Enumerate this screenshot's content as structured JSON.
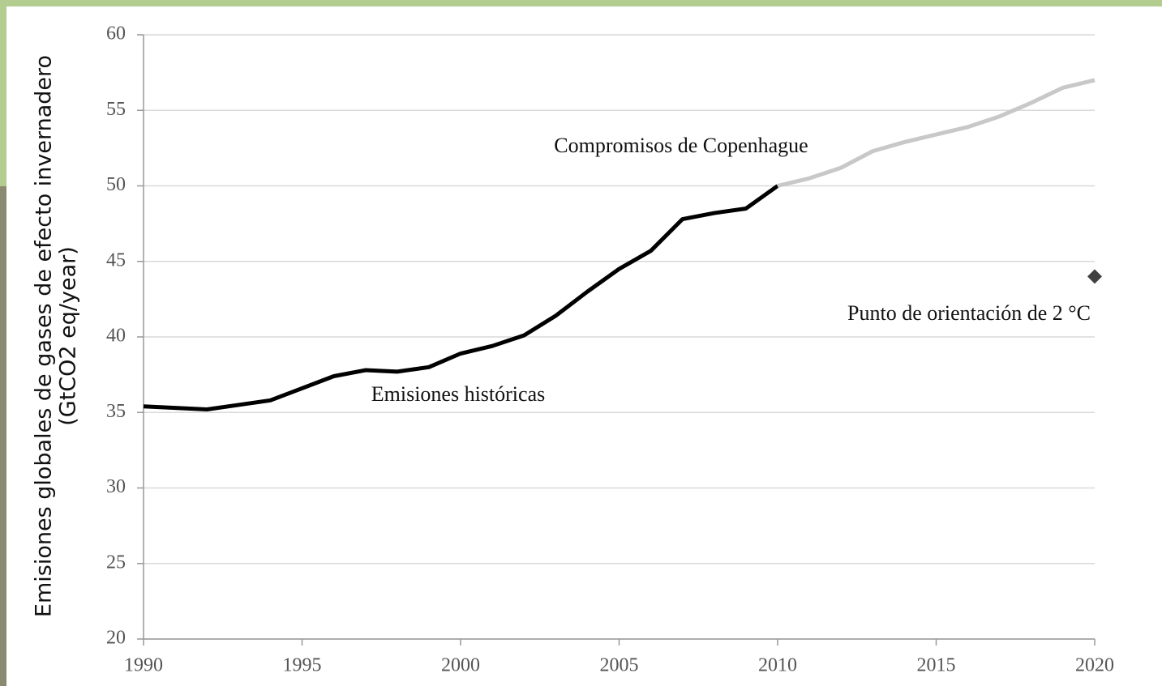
{
  "chart_data": {
    "type": "line",
    "y_label": [
      "Emisiones globales de gases de efecto invernadero",
      "(GtCO2 eq/year)"
    ],
    "x": [
      1990,
      1991,
      1992,
      1993,
      1994,
      1995,
      1996,
      1997,
      1998,
      1999,
      2000,
      2001,
      2002,
      2003,
      2004,
      2005,
      2006,
      2007,
      2008,
      2009,
      2010,
      2011,
      2012,
      2013,
      2014,
      2015,
      2016,
      2017,
      2018,
      2019,
      2020
    ],
    "series": [
      {
        "name": "Emisiones históricas",
        "color": "#000000",
        "marker": "line",
        "values": [
          35.4,
          35.3,
          35.2,
          35.5,
          35.8,
          36.6,
          37.4,
          37.8,
          37.7,
          38.0,
          38.9,
          39.4,
          40.1,
          41.4,
          43.0,
          44.5,
          45.7,
          47.8,
          48.2,
          48.5,
          50.0,
          null,
          null,
          null,
          null,
          null,
          null,
          null,
          null,
          null,
          null
        ]
      },
      {
        "name": "Compromisos de Copenhague",
        "color": "#c8c8c8",
        "marker": "line",
        "values": [
          null,
          null,
          null,
          null,
          null,
          null,
          null,
          null,
          null,
          null,
          null,
          null,
          null,
          null,
          null,
          null,
          null,
          null,
          null,
          null,
          50.0,
          50.5,
          51.2,
          52.3,
          52.9,
          53.4,
          53.9,
          54.6,
          55.5,
          56.5,
          57.0
        ]
      },
      {
        "name": "Punto de orientación de 2 °C",
        "color": "#404040",
        "marker": "diamond",
        "values": [
          null,
          null,
          null,
          null,
          null,
          null,
          null,
          null,
          null,
          null,
          null,
          null,
          null,
          null,
          null,
          null,
          null,
          null,
          null,
          null,
          null,
          null,
          null,
          null,
          null,
          null,
          null,
          null,
          null,
          null,
          44.0
        ]
      }
    ],
    "xlim": [
      1990,
      2020
    ],
    "xticks": [
      1990,
      1995,
      2000,
      2005,
      2010,
      2015,
      2020
    ],
    "ylim": [
      20,
      60
    ],
    "yticks": [
      20,
      25,
      30,
      35,
      40,
      45,
      50,
      55,
      60
    ],
    "grid": true
  }
}
